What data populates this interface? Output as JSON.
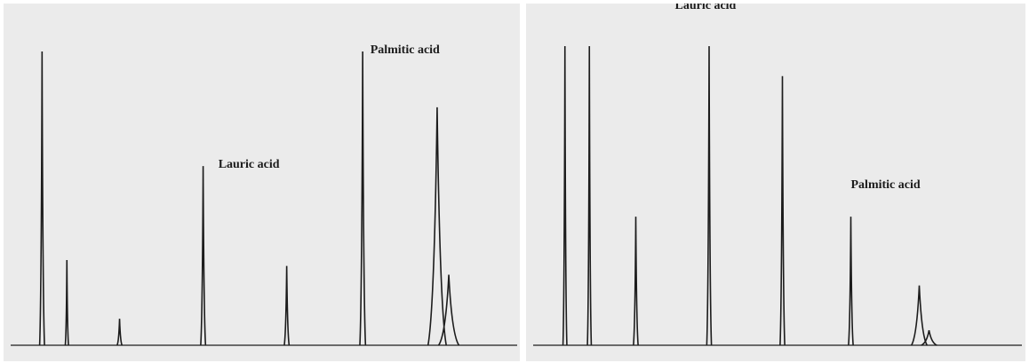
{
  "chart_data": [
    {
      "type": "line",
      "xlabel": "",
      "ylabel": "",
      "grid": false,
      "legend": "none",
      "color": "#1c1c1c",
      "background": "#ebebeb",
      "ylim": [
        0,
        100
      ],
      "peaks": [
        {
          "t": 6.2,
          "h": 100,
          "w": 0.12,
          "label": ""
        },
        {
          "t": 11.1,
          "h": 29,
          "w": 0.08,
          "label": ""
        },
        {
          "t": 21.5,
          "h": 9,
          "w": 0.12,
          "label": ""
        },
        {
          "t": 38.0,
          "h": 61,
          "w": 0.12,
          "label": "Lauric acid"
        },
        {
          "t": 54.5,
          "h": 27,
          "w": 0.12,
          "label": ""
        },
        {
          "t": 69.5,
          "h": 100,
          "w": 0.14,
          "label": "Palmitic acid"
        },
        {
          "t": 84.2,
          "h": 81,
          "w": 0.45,
          "label": ""
        },
        {
          "t": 86.5,
          "h": 24,
          "w": 0.5,
          "label": ""
        }
      ],
      "labels": [
        {
          "text": "Lauric acid",
          "t": 41.0,
          "y": 61
        },
        {
          "text": "Palmitic acid",
          "t": 71.0,
          "y": 100
        }
      ]
    },
    {
      "type": "line",
      "xlabel": "",
      "ylabel": "",
      "grid": false,
      "legend": "none",
      "color": "#1c1c1c",
      "background": "#ebebeb",
      "ylim": [
        0,
        100
      ],
      "peaks": [
        {
          "t": 6.5,
          "h": 100,
          "w": 0.1,
          "label": ""
        },
        {
          "t": 11.5,
          "h": 100,
          "w": 0.1,
          "label": ""
        },
        {
          "t": 21.0,
          "h": 43,
          "w": 0.12,
          "label": ""
        },
        {
          "t": 36.0,
          "h": 100,
          "w": 0.12,
          "label": "Lauric acid"
        },
        {
          "t": 51.0,
          "h": 90,
          "w": 0.12,
          "label": ""
        },
        {
          "t": 65.0,
          "h": 43,
          "w": 0.12,
          "label": "Palmitic acid"
        },
        {
          "t": 79.0,
          "h": 20,
          "w": 0.4,
          "label": ""
        },
        {
          "t": 81.0,
          "h": 5,
          "w": 0.4,
          "label": ""
        }
      ],
      "labels": [
        {
          "text": "Lauric acid",
          "t": 29.0,
          "y": 113
        },
        {
          "text": "Palmitic acid",
          "t": 65.0,
          "y": 53
        }
      ]
    }
  ]
}
